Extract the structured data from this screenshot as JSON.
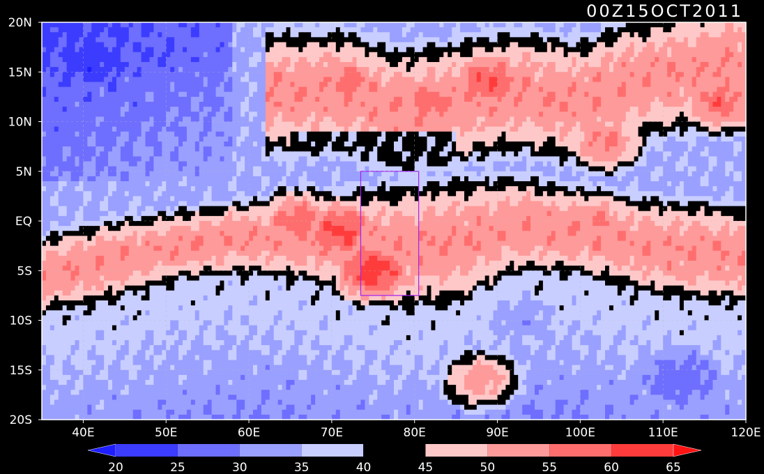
{
  "chart_data": {
    "type": "heatmap",
    "title": "00Z15OCT2011",
    "xlim": [
      35,
      120
    ],
    "ylim": [
      -20,
      20
    ],
    "x_ticks": [
      {
        "value": 40,
        "label": "40E"
      },
      {
        "value": 50,
        "label": "50E"
      },
      {
        "value": 60,
        "label": "60E"
      },
      {
        "value": 70,
        "label": "70E"
      },
      {
        "value": 80,
        "label": "80E"
      },
      {
        "value": 90,
        "label": "90E"
      },
      {
        "value": 100,
        "label": "100E"
      },
      {
        "value": 110,
        "label": "110E"
      },
      {
        "value": 120,
        "label": "120E"
      }
    ],
    "y_ticks": [
      {
        "value": 20,
        "label": "20N"
      },
      {
        "value": 15,
        "label": "15N"
      },
      {
        "value": 10,
        "label": "10N"
      },
      {
        "value": 5,
        "label": "5N"
      },
      {
        "value": 0,
        "label": "EQ"
      },
      {
        "value": -5,
        "label": "5S"
      },
      {
        "value": -10,
        "label": "10S"
      },
      {
        "value": -15,
        "label": "15S"
      },
      {
        "value": -20,
        "label": "20S"
      }
    ],
    "grid": true,
    "colorbar": {
      "levels": [
        "20",
        "25",
        "30",
        "35",
        "40",
        "45",
        "50",
        "55",
        "60",
        "65"
      ],
      "colors": [
        "#1e1eff",
        "#3c3cff",
        "#6e6eff",
        "#9aa0ff",
        "#c8ceff",
        "#000000",
        "#ffc8c8",
        "#ff9a9a",
        "#ff6e6e",
        "#ff3c3c",
        "#ff1414"
      ]
    },
    "region_box": {
      "lon": [
        73.5,
        80.5
      ],
      "lat": [
        -7.5,
        5
      ]
    },
    "band_profile": {
      "lon": [
        35,
        42,
        50,
        58,
        65,
        72,
        78,
        85,
        92,
        100,
        106,
        112,
        120
      ],
      "north_edge_lat": [
        -2,
        -0.5,
        0.5,
        1.5,
        2,
        2.5,
        3,
        3.5,
        4,
        3,
        2,
        1.5,
        1
      ],
      "south_edge_lat": [
        -9,
        -8,
        -6,
        -5,
        -5.5,
        -7,
        -8.5,
        -8,
        -5,
        -5,
        -6.5,
        -7.5,
        -8
      ],
      "north_ridge_lat": [
        8,
        10,
        12,
        13,
        13,
        13,
        11,
        12,
        13,
        12,
        14,
        15,
        16
      ],
      "north_ridge_lon_start": 62
    },
    "hotspots": [
      {
        "lon": 75,
        "lat": -5,
        "value": 62
      },
      {
        "lon": 71,
        "lat": -1,
        "value": 61
      },
      {
        "lon": 66,
        "lat": 0,
        "value": 58
      },
      {
        "lon": 89,
        "lat": 14,
        "value": 60
      },
      {
        "lon": 82,
        "lat": 12,
        "value": 58
      },
      {
        "lon": 72,
        "lat": 14,
        "value": 57
      },
      {
        "lon": 103,
        "lat": 8,
        "value": 56
      },
      {
        "lon": 117,
        "lat": 12,
        "value": 58
      },
      {
        "lon": 88,
        "lat": -16,
        "value": 53
      },
      {
        "lon": 102,
        "lat": 0,
        "value": 55
      }
    ],
    "low_regions": [
      {
        "lon": 41,
        "lat": 16,
        "value": 22
      },
      {
        "lon": 50,
        "lat": 17,
        "value": 25
      },
      {
        "lon": 112,
        "lat": -16,
        "value": 27
      },
      {
        "lon": 93,
        "lat": -10,
        "value": 32
      },
      {
        "lon": 62,
        "lat": -15,
        "value": 33
      }
    ]
  }
}
